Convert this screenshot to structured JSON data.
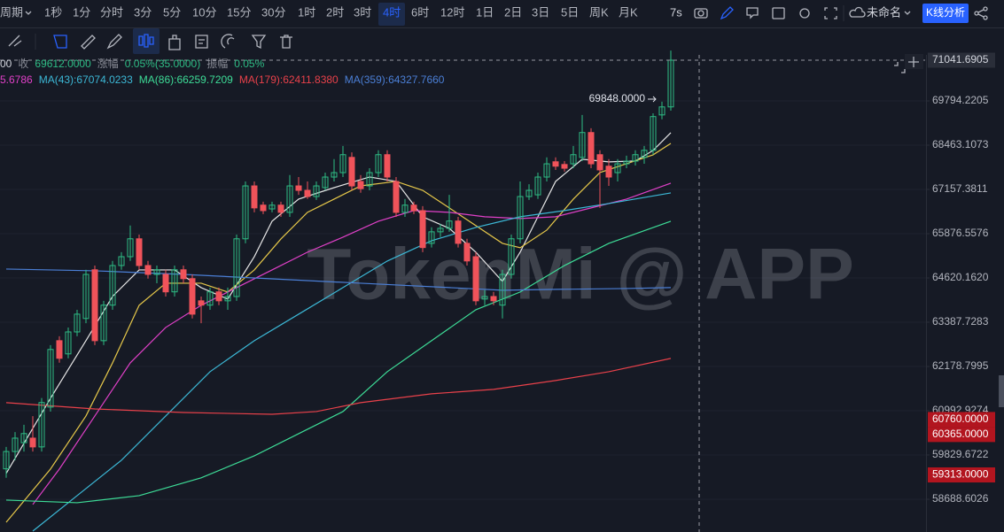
{
  "toolbar": {
    "period_label": "周期",
    "periods": [
      "1秒",
      "1分",
      "分时",
      "3分",
      "5分",
      "10分",
      "15分",
      "30分",
      "1时",
      "2时",
      "3时",
      "4时",
      "6时",
      "12时",
      "1日",
      "2日",
      "3日",
      "5日",
      "周K",
      "月K"
    ],
    "active_period": 11,
    "timer": "7s",
    "layout_name": "未命名",
    "analysis_button": "K线分析"
  },
  "info_bar": [
    {
      "text": "00",
      "color": "#d1d4dc"
    },
    {
      "text": "收",
      "color": "#868993"
    },
    {
      "text": "69612.0000",
      "color": "#2ebd85"
    },
    {
      "text": "涨幅",
      "color": "#868993"
    },
    {
      "text": "0.05%(35.0000)",
      "color": "#2ebd85"
    },
    {
      "text": "振幅",
      "color": "#868993"
    },
    {
      "text": "0.05%",
      "color": "#2ebd85"
    }
  ],
  "legend": [
    {
      "text": "5.6786",
      "color": "#e040c8"
    },
    {
      "text": "MA(43):67074.0233",
      "color": "#3cb8d6"
    },
    {
      "text": "MA(86):66259.7209",
      "color": "#3ddc97"
    },
    {
      "text": "MA(179):62411.8380",
      "color": "#e8414a"
    },
    {
      "text": "MA(359):64327.7660",
      "color": "#4b7fd6"
    }
  ],
  "watermark": "TokenMi @ APP",
  "chart_data": {
    "type": "candlestick",
    "log_scale": true,
    "grid": true,
    "up_color": "#2ebd85",
    "down_color": "#f0535a",
    "ylim": [
      57858,
      71343
    ],
    "yticks": [
      69794.2205,
      68463.1073,
      67157.3811,
      65876.5576,
      {
        "value": 64620.162,
        "label": "64620.1620"
      },
      63387.7283,
      62178.7995,
      60992.9274,
      59829.6722,
      58688.6026
    ],
    "open": [
      59470,
      59920,
      60150,
      60270,
      60040,
      61090,
      62880,
      62520,
      63120,
      63490,
      64850,
      62880,
      63860,
      64970,
      65220,
      65730,
      64970,
      64720,
      64720,
      64230,
      64850,
      64600,
      63980,
      63860,
      64230,
      63980,
      64100,
      65730,
      67260,
      66700,
      66590,
      66700,
      66490,
      67260,
      67130,
      66950,
      67210,
      67520,
      67650,
      68100,
      67390,
      67260,
      67650,
      68180,
      67390,
      66490,
      66700,
      66540,
      65600,
      65930,
      66030,
      66240,
      65600,
      65220,
      64030,
      64100,
      63860,
      64720,
      65730,
      66950,
      67000,
      67520,
      67970,
      67890,
      67910,
      68100,
      68840,
      68180,
      67840,
      67650,
      67910,
      67990,
      68100,
      68310,
      69370,
      69612
    ],
    "high": [
      60040,
      60430,
      60620,
      60850,
      61330,
      62760,
      63000,
      63240,
      63730,
      64850,
      64970,
      63980,
      65100,
      65350,
      66110,
      65850,
      65100,
      64970,
      64850,
      64970,
      64970,
      64720,
      64100,
      64350,
      64350,
      64350,
      65850,
      67390,
      67390,
      66800,
      66800,
      66800,
      67580,
      67520,
      67390,
      67390,
      67650,
      68050,
      68440,
      68250,
      67580,
      67780,
      68310,
      68310,
      67520,
      66880,
      66800,
      66670,
      66060,
      66160,
      67000,
      66360,
      65730,
      65350,
      64280,
      64230,
      64850,
      65850,
      67390,
      67310,
      67650,
      68100,
      68100,
      67990,
      68440,
      69370,
      68970,
      68310,
      68050,
      68050,
      68150,
      68310,
      68440,
      69420,
      69770,
      71340
    ],
    "low": [
      59240,
      59690,
      59920,
      59920,
      59920,
      60970,
      62280,
      62400,
      63000,
      63360,
      62760,
      62760,
      63730,
      64850,
      65100,
      64850,
      64600,
      64470,
      64100,
      64100,
      64470,
      63490,
      63360,
      63730,
      63860,
      63730,
      63980,
      65600,
      66490,
      66440,
      66490,
      66360,
      66360,
      67000,
      66880,
      66850,
      67130,
      67390,
      67520,
      67130,
      67060,
      67130,
      67520,
      67390,
      66360,
      66360,
      66440,
      65350,
      65480,
      65780,
      65930,
      65480,
      64970,
      63860,
      63860,
      63860,
      63490,
      64600,
      65600,
      66850,
      66880,
      67390,
      67730,
      67680,
      67780,
      67990,
      67780,
      66620,
      67260,
      67390,
      67780,
      67860,
      67910,
      68180,
      69240,
      69500
    ],
    "close": [
      59920,
      60270,
      60390,
      60040,
      61210,
      62640,
      62400,
      63120,
      63610,
      64720,
      62880,
      63860,
      64970,
      65220,
      65730,
      64970,
      64720,
      64850,
      64230,
      64850,
      64600,
      63610,
      63860,
      64230,
      63980,
      64100,
      65730,
      67260,
      66620,
      66540,
      66700,
      66490,
      67260,
      67130,
      66950,
      67260,
      67520,
      67650,
      68180,
      67260,
      67180,
      67650,
      68180,
      67520,
      66490,
      66700,
      66540,
      65480,
      65930,
      66030,
      66240,
      65600,
      65100,
      63980,
      64100,
      63980,
      64720,
      65730,
      66950,
      67130,
      67520,
      67910,
      67840,
      67780,
      68180,
      68840,
      67910,
      67730,
      67520,
      67910,
      67990,
      68180,
      68310,
      69320,
      69612,
      71041.6905
    ],
    "lines": [
      {
        "color": "#e6e6e6",
        "x": [
          0,
          5,
          9,
          12,
          15,
          19,
          22,
          25,
          28,
          30,
          33,
          37,
          41,
          44,
          47,
          50,
          53,
          56,
          58,
          60,
          62,
          65,
          68,
          71,
          73,
          75
        ],
        "values": [
          59351,
          61325,
          62880,
          64103,
          64846,
          64846,
          64349,
          64029,
          65222,
          66235,
          66875,
          67209,
          67522,
          67392,
          66363,
          66030,
          65349,
          64522,
          65349,
          66363,
          67392,
          68045,
          67967,
          67993,
          68306,
          68835
        ]
      },
      {
        "color": "#e6c84a",
        "x": [
          0,
          5,
          9,
          12,
          15,
          18,
          22,
          25,
          28,
          31,
          34,
          37,
          40,
          44,
          47,
          50,
          53,
          56,
          58,
          61,
          64,
          67,
          70,
          73,
          75
        ],
        "values": [
          58104,
          59465,
          60853,
          62276,
          63855,
          64472,
          64472,
          64226,
          64846,
          65725,
          66491,
          66875,
          67261,
          67392,
          67131,
          66619,
          66107,
          65600,
          65475,
          65979,
          66875,
          67653,
          67914,
          68176,
          68516
        ]
      },
      {
        "color": "#e040c8",
        "x": [
          3,
          6,
          10,
          14,
          18,
          22,
          26,
          30,
          34,
          38,
          42,
          46,
          50,
          54,
          58,
          62,
          66,
          70,
          75
        ],
        "values": [
          58554,
          59465,
          60853,
          62276,
          63243,
          63855,
          64349,
          64846,
          65349,
          65776,
          66235,
          66542,
          66491,
          66363,
          66312,
          66363,
          66619,
          66875,
          67340
        ]
      },
      {
        "color": "#3cb8d6",
        "x": [
          3,
          8,
          13,
          18,
          23,
          28,
          33,
          38,
          43,
          48,
          53,
          58,
          63,
          68,
          75
        ],
        "values": [
          57880,
          58780,
          59693,
          60853,
          62037,
          62880,
          63609,
          64349,
          65097,
          65674,
          66056,
          66363,
          66542,
          66747,
          67055
        ]
      },
      {
        "color": "#3ddc97",
        "x": [
          0,
          8,
          15,
          22,
          28,
          33,
          38,
          43,
          48,
          53,
          58,
          63,
          68,
          75
        ],
        "values": [
          58667,
          58599,
          58780,
          59237,
          59807,
          60387,
          60970,
          62037,
          62880,
          63732,
          64226,
          64971,
          65600,
          66235
        ]
      },
      {
        "color": "#e8414a",
        "x": [
          0,
          10,
          20,
          30,
          35,
          40,
          48,
          55,
          62,
          68,
          75
        ],
        "values": [
          61207,
          61040,
          60946,
          60899,
          60970,
          61207,
          61444,
          61562,
          61800,
          62037,
          62397
        ]
      },
      {
        "color": "#4b7fd6",
        "x": [
          0,
          10,
          20,
          30,
          40,
          50,
          56,
          62,
          70,
          75
        ],
        "values": [
          64871,
          64821,
          64720,
          64595,
          64472,
          64349,
          64275,
          64300,
          64324,
          64349
        ]
      }
    ],
    "price_tags": [
      {
        "value": 71041.6905,
        "bg": "#2a2e39",
        "color": "#d1d4dc",
        "dashed_line": true
      },
      {
        "value": 60760,
        "label": "60760.0000",
        "bg": "#b2151f",
        "color": "#ffffff"
      },
      {
        "value": 60365,
        "label": "60365.0000",
        "bg": "#b2151f",
        "color": "#ffffff"
      },
      {
        "value": 59313,
        "label": "59313.0000",
        "bg": "#b2151f",
        "color": "#ffffff"
      }
    ],
    "annotation": {
      "value": 69848,
      "label": "69848.0000",
      "candle": 73
    }
  }
}
